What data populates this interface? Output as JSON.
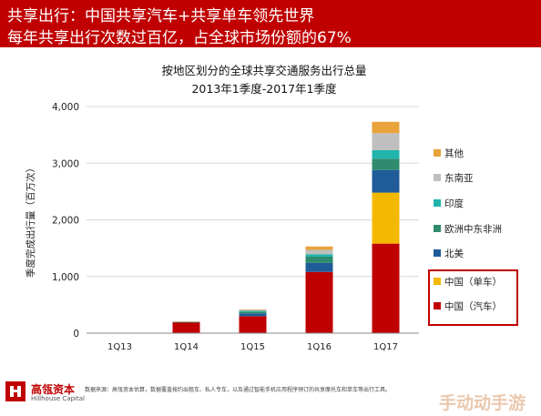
{
  "header": {
    "line1": "共享出行：中国共享汽车+共享单车领先世界",
    "line2": "每年共享出行次数过百亿，占全球市场份额的67%"
  },
  "chart_data": {
    "type": "bar",
    "stacked": true,
    "title": "按地区划分的全球共享交通服务出行总量",
    "subtitle": "2013年1季度-2017年1季度",
    "ylabel": "季度完成出行量（百万次）",
    "xlabel": "",
    "ylim": [
      0,
      4000
    ],
    "yticks": [
      0,
      1000,
      2000,
      3000,
      4000
    ],
    "ytick_labels": [
      "0",
      "1,000",
      "2,000",
      "3,000",
      "4,000"
    ],
    "grid": true,
    "legend_position": "right",
    "categories": [
      "1Q13",
      "1Q14",
      "1Q15",
      "1Q16",
      "1Q17"
    ],
    "series": [
      {
        "name": "中国（汽车）",
        "color": "#c00000",
        "values": [
          5,
          190,
          300,
          1080,
          1580
        ]
      },
      {
        "name": "中国（单车）",
        "color": "#f5b800",
        "values": [
          0,
          0,
          0,
          0,
          900
        ]
      },
      {
        "name": "北美",
        "color": "#1f5c99",
        "values": [
          2,
          5,
          50,
          160,
          400
        ]
      },
      {
        "name": "欧洲中东非洲",
        "color": "#2e8b6e",
        "values": [
          1,
          5,
          30,
          110,
          200
        ]
      },
      {
        "name": "印度",
        "color": "#1fb5ad",
        "values": [
          0,
          2,
          15,
          40,
          150
        ]
      },
      {
        "name": "东南亚",
        "color": "#bfbfbf",
        "values": [
          0,
          2,
          15,
          80,
          300
        ]
      },
      {
        "name": "其他",
        "color": "#e8a33c",
        "values": [
          0,
          1,
          10,
          60,
          200
        ]
      }
    ]
  },
  "footer": {
    "logo_cn": "高瓴资本",
    "logo_en": "Hillhouse Capital",
    "source": "数据来源：高瓴资本估算，数据覆盖按约出租车、私人专车，以及通过智能手机应用程序预订的共享摩托车和单车等出行工具。"
  },
  "watermark": "手动动手游"
}
